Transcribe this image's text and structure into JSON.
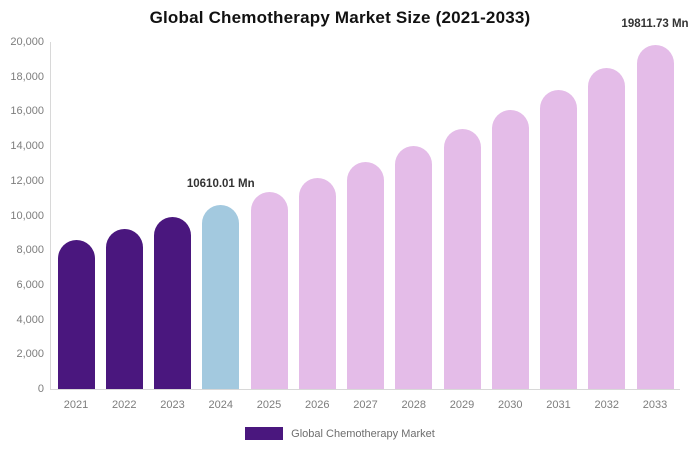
{
  "title": "Global Chemotherapy Market Size (2021-2033)",
  "legend": {
    "label": "Global Chemotherapy Market",
    "swatch_color": "#4a177e"
  },
  "colors": {
    "historical": "#4a177e",
    "current_year": "#a3c9df",
    "forecast": "#e4bce8",
    "axis_line": "#d8d8d8",
    "tick_text": "#7d7d7d",
    "annotation_text": "#333333",
    "title_text": "#111111"
  },
  "chart_data": {
    "type": "bar",
    "title": "Global Chemotherapy Market Size (2021-2033)",
    "xlabel": "",
    "ylabel": "",
    "unit": "Mn",
    "grid": false,
    "legend_position": "bottom",
    "ylim": [
      0,
      20000
    ],
    "ytick_step": 2000,
    "yticks": [
      {
        "value": 0,
        "label": "0"
      },
      {
        "value": 2000,
        "label": "2,000"
      },
      {
        "value": 4000,
        "label": "4,000"
      },
      {
        "value": 6000,
        "label": "6,000"
      },
      {
        "value": 8000,
        "label": "8,000"
      },
      {
        "value": 10000,
        "label": "10,000"
      },
      {
        "value": 12000,
        "label": "12,000"
      },
      {
        "value": 14000,
        "label": "14,000"
      },
      {
        "value": 16000,
        "label": "16,000"
      },
      {
        "value": 18000,
        "label": "18,000"
      },
      {
        "value": 20000,
        "label": "20,000"
      }
    ],
    "categories": [
      "2021",
      "2022",
      "2023",
      "2024",
      "2025",
      "2026",
      "2027",
      "2028",
      "2029",
      "2030",
      "2031",
      "2032",
      "2033"
    ],
    "series": [
      {
        "name": "Global Chemotherapy Market",
        "values": [
          8616.15,
          9235.23,
          9898.78,
          10610.01,
          11372.34,
          12189.44,
          13065.25,
          14004.0,
          15010.18,
          16088.7,
          17244.71,
          18483.8,
          19811.73
        ]
      }
    ],
    "bar_color_keys": [
      "historical",
      "historical",
      "historical",
      "current_year",
      "forecast",
      "forecast",
      "forecast",
      "forecast",
      "forecast",
      "forecast",
      "forecast",
      "forecast",
      "forecast"
    ],
    "annotations": [
      {
        "category": "2024",
        "text": "10610.01 Mn"
      },
      {
        "category": "2033",
        "text": "19811.73 Mn"
      }
    ]
  }
}
